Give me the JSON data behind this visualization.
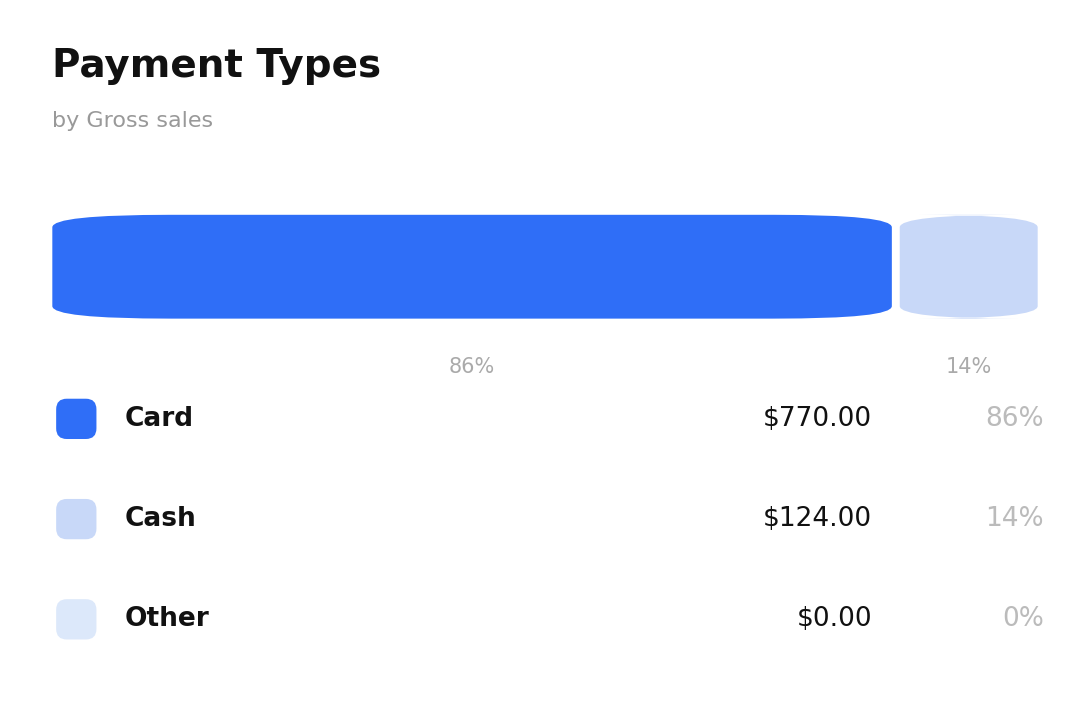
{
  "title": "Payment Types",
  "subtitle": "by Gross sales",
  "background_color": "#ffffff",
  "bar_segments": [
    {
      "label": "Card",
      "pct": 0.86,
      "color": "#2f6ef7"
    },
    {
      "label": "Cash",
      "pct": 0.14,
      "color": "#c8d8f8"
    },
    {
      "label": "Other",
      "pct": 0.0,
      "color": "#dce8fa"
    }
  ],
  "rows": [
    {
      "label": "Card",
      "amount": "$770.00",
      "pct": "86%",
      "color": "#2f6ef7"
    },
    {
      "label": "Cash",
      "amount": "$124.00",
      "pct": "14%",
      "color": "#c8d8f8"
    },
    {
      "label": "Other",
      "amount": "$0.00",
      "pct": "0%",
      "color": "#dce8fa"
    }
  ],
  "title_fontsize": 28,
  "subtitle_fontsize": 16,
  "row_label_fontsize": 19,
  "row_amount_fontsize": 19,
  "row_pct_fontsize": 19,
  "pct_label_fontsize": 15,
  "title_color": "#111111",
  "subtitle_color": "#999999",
  "row_label_color": "#111111",
  "row_amount_color": "#111111",
  "row_pct_color": "#bbbbbb",
  "pct_label_color": "#aaaaaa",
  "bar_gap": 0.008
}
